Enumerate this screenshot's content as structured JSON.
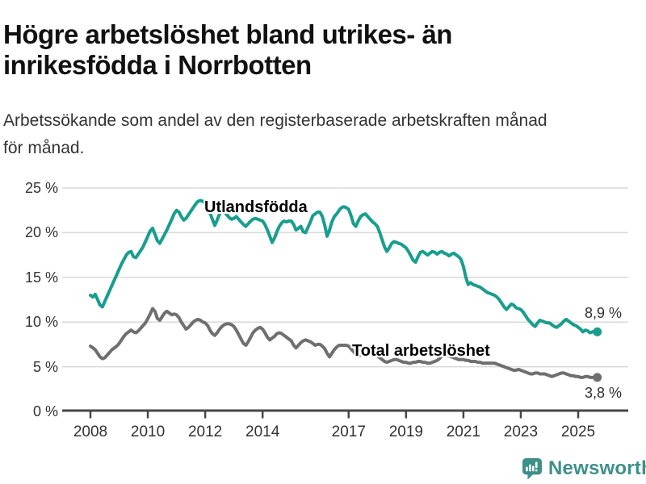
{
  "header": {
    "title": "Högre arbetslöshet bland utrikes- än\ninrikesfödda i Norrbotten",
    "subtitle": "Arbetssökande som andel av den registerbaserade arbetskraften månad\nför månad."
  },
  "footer": {
    "brand": "Newsworthy",
    "logo_icon": "bar-chart-speech-bubble-icon"
  },
  "colors": {
    "teal_line": "#199e8d",
    "gray_line": "#6f6f6f",
    "grid": "#d9d9d9",
    "axis": "#474747",
    "tick_text": "#333333",
    "title_text": "#111111",
    "brand_teal": "#3d9089"
  },
  "chart_data": {
    "type": "line",
    "unit": "%",
    "frequency": "monthly",
    "start": "2008-01",
    "end": "2025-09",
    "start_year": 2008,
    "ylim": [
      0,
      26.5
    ],
    "grid": true,
    "y_ticks": [
      {
        "label": "25 %",
        "value": 25
      },
      {
        "label": "20 %",
        "value": 20
      },
      {
        "label": "15 %",
        "value": 15
      },
      {
        "label": "10 %",
        "value": 10
      },
      {
        "label": "5 %",
        "value": 5
      },
      {
        "label": "0 %",
        "value": 0
      }
    ],
    "x_ticks": [
      {
        "label": "2008",
        "year": 2008
      },
      {
        "label": "2010",
        "year": 2010
      },
      {
        "label": "2012",
        "year": 2012
      },
      {
        "label": "2014",
        "year": 2014
      },
      {
        "label": "2017",
        "year": 2017
      },
      {
        "label": "2019",
        "year": 2019
      },
      {
        "label": "2021",
        "year": 2021
      },
      {
        "label": "2023",
        "year": 2023
      },
      {
        "label": "2025",
        "year": 2025
      }
    ],
    "series": [
      {
        "name": "Utlandsfödda",
        "color": "#199e8d",
        "end_label": "8,9 %",
        "end_value": 8.9,
        "values": [
          13.0,
          12.8,
          13.1,
          12.5,
          11.9,
          11.7,
          12.3,
          12.9,
          13.5,
          14.1,
          14.7,
          15.3,
          15.9,
          16.5,
          17.0,
          17.5,
          17.8,
          17.9,
          17.3,
          17.2,
          17.6,
          18.0,
          18.4,
          19.0,
          19.6,
          20.2,
          20.5,
          19.8,
          19.1,
          18.8,
          19.3,
          19.8,
          20.3,
          20.9,
          21.5,
          22.1,
          22.5,
          22.3,
          21.8,
          21.4,
          21.6,
          22.0,
          22.4,
          22.8,
          23.2,
          23.5,
          23.6,
          23.5,
          23.3,
          22.8,
          22.2,
          21.5,
          20.8,
          21.4,
          22.1,
          22.7,
          22.4,
          22.0,
          21.7,
          21.5,
          21.6,
          21.8,
          21.5,
          21.2,
          20.9,
          20.7,
          21.0,
          21.3,
          21.5,
          21.6,
          21.5,
          21.4,
          21.3,
          20.9,
          20.3,
          19.6,
          18.9,
          19.4,
          20.1,
          20.7,
          21.1,
          21.3,
          21.2,
          21.3,
          21.3,
          20.9,
          20.3,
          20.5,
          20.7,
          20.1,
          20.0,
          20.6,
          21.2,
          21.9,
          22.1,
          22.3,
          22.3,
          21.8,
          20.8,
          19.6,
          20.3,
          21.2,
          21.8,
          22.1,
          22.5,
          22.8,
          22.9,
          22.8,
          22.6,
          21.9,
          21.0,
          20.7,
          21.3,
          21.8,
          22.0,
          22.1,
          21.8,
          21.5,
          21.2,
          21.0,
          20.7,
          20.0,
          19.2,
          18.4,
          17.9,
          18.3,
          18.8,
          19.0,
          18.9,
          18.8,
          18.7,
          18.5,
          18.3,
          17.9,
          17.4,
          16.9,
          16.7,
          17.3,
          17.8,
          17.9,
          17.7,
          17.5,
          17.7,
          17.9,
          17.8,
          17.6,
          17.8,
          17.9,
          17.7,
          17.6,
          17.4,
          17.6,
          17.7,
          17.5,
          17.3,
          17.0,
          16.2,
          15.0,
          14.2,
          14.4,
          14.2,
          14.1,
          14.0,
          13.9,
          13.7,
          13.5,
          13.3,
          13.2,
          13.1,
          13.0,
          12.8,
          12.5,
          12.1,
          11.7,
          11.4,
          11.7,
          12.0,
          11.9,
          11.6,
          11.5,
          11.4,
          11.1,
          10.7,
          10.3,
          10.0,
          9.7,
          9.5,
          9.9,
          10.2,
          10.1,
          10.0,
          9.9,
          9.9,
          9.7,
          9.5,
          9.4,
          9.6,
          9.8,
          10.1,
          10.3,
          10.1,
          9.9,
          9.7,
          9.6,
          9.4,
          9.2,
          8.9,
          9.1,
          9.0,
          8.8,
          8.9,
          9.0,
          8.9
        ]
      },
      {
        "name": "Total arbetslöshet",
        "color": "#6f6f6f",
        "end_label": "3,8 %",
        "end_value": 3.8,
        "values": [
          7.3,
          7.1,
          6.9,
          6.5,
          6.1,
          5.9,
          6.0,
          6.3,
          6.6,
          6.9,
          7.1,
          7.3,
          7.6,
          8.0,
          8.4,
          8.7,
          8.9,
          9.1,
          8.9,
          8.8,
          9.0,
          9.3,
          9.6,
          9.9,
          10.4,
          10.9,
          11.5,
          11.2,
          10.4,
          10.2,
          10.6,
          11.0,
          11.2,
          11.0,
          10.8,
          10.9,
          10.8,
          10.5,
          10.0,
          9.6,
          9.2,
          9.4,
          9.7,
          10.0,
          10.2,
          10.3,
          10.2,
          10.0,
          9.9,
          9.6,
          9.1,
          8.7,
          8.5,
          8.8,
          9.2,
          9.5,
          9.7,
          9.8,
          9.8,
          9.7,
          9.5,
          9.1,
          8.6,
          8.1,
          7.6,
          7.4,
          7.8,
          8.3,
          8.8,
          9.1,
          9.3,
          9.4,
          9.2,
          8.8,
          8.3,
          8.0,
          8.2,
          8.4,
          8.7,
          8.8,
          8.7,
          8.5,
          8.3,
          8.1,
          7.9,
          7.4,
          7.1,
          7.4,
          7.7,
          7.9,
          8.0,
          7.9,
          7.8,
          7.6,
          7.4,
          7.5,
          7.5,
          7.3,
          7.0,
          6.5,
          6.1,
          6.5,
          6.9,
          7.2,
          7.4,
          7.4,
          7.4,
          7.4,
          7.3,
          7.0,
          6.7,
          6.4,
          6.2,
          6.3,
          6.5,
          6.6,
          6.6,
          6.5,
          6.4,
          6.3,
          6.2,
          6.0,
          5.8,
          5.6,
          5.5,
          5.6,
          5.7,
          5.8,
          5.8,
          5.7,
          5.6,
          5.5,
          5.5,
          5.4,
          5.4,
          5.5,
          5.5,
          5.6,
          5.6,
          5.5,
          5.5,
          5.4,
          5.4,
          5.5,
          5.6,
          5.7,
          5.9,
          6.2,
          6.3,
          6.3,
          6.2,
          6.1,
          6.0,
          5.9,
          5.8,
          5.8,
          5.8,
          5.7,
          5.7,
          5.6,
          5.6,
          5.6,
          5.5,
          5.5,
          5.4,
          5.4,
          5.4,
          5.4,
          5.4,
          5.4,
          5.3,
          5.2,
          5.1,
          5.0,
          4.9,
          4.8,
          4.7,
          4.6,
          4.6,
          4.7,
          4.6,
          4.5,
          4.4,
          4.3,
          4.2,
          4.2,
          4.3,
          4.3,
          4.2,
          4.2,
          4.2,
          4.1,
          4.0,
          3.9,
          4.0,
          4.1,
          4.2,
          4.3,
          4.3,
          4.2,
          4.1,
          4.0,
          4.0,
          3.9,
          3.9,
          3.8,
          3.8,
          3.9,
          3.9,
          3.8,
          3.8,
          3.8,
          3.8
        ]
      }
    ]
  }
}
